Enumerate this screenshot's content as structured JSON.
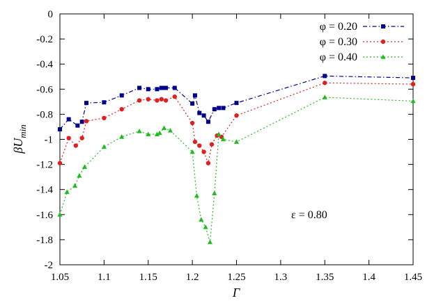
{
  "chart_data": {
    "type": "line",
    "title": "",
    "xlabel": "Γ",
    "ylabel_main": "βU",
    "ylabel_sub": "min",
    "xlim": [
      1.05,
      1.45
    ],
    "ylim": [
      -2,
      0
    ],
    "x_ticks": [
      "1.05",
      "1.1",
      "1.15",
      "1.2",
      "1.25",
      "1.3",
      "1.35",
      "1.4",
      "1.45"
    ],
    "y_ticks": [
      "0",
      "-0.2",
      "-0.4",
      "-0.6",
      "-0.8",
      "-1",
      "-1.2",
      "-1.4",
      "-1.6",
      "-1.8",
      "-2"
    ],
    "grid": false,
    "legend_position": "top-right",
    "annotation": "ε = 0.80",
    "series": [
      {
        "name": "φ = 0.20",
        "color": "#00008b",
        "marker": "square",
        "dash": "dash-dot",
        "x": [
          1.05,
          1.06,
          1.07,
          1.075,
          1.08,
          1.1,
          1.12,
          1.14,
          1.15,
          1.16,
          1.165,
          1.168,
          1.17,
          1.18,
          1.2,
          1.203,
          1.208,
          1.213,
          1.218,
          1.225,
          1.23,
          1.235,
          1.25,
          1.35,
          1.45
        ],
        "y": [
          -0.92,
          -0.84,
          -0.89,
          -0.86,
          -0.71,
          -0.705,
          -0.65,
          -0.59,
          -0.6,
          -0.6,
          -0.59,
          -0.59,
          -0.59,
          -0.59,
          -0.715,
          -0.65,
          -0.79,
          -0.81,
          -0.86,
          -0.76,
          -0.75,
          -0.75,
          -0.71,
          -0.495,
          -0.51
        ]
      },
      {
        "name": "φ = 0.30",
        "color": "#e02020",
        "marker": "circle",
        "dash": "dotted",
        "x": [
          1.05,
          1.06,
          1.068,
          1.075,
          1.08,
          1.1,
          1.12,
          1.14,
          1.15,
          1.16,
          1.165,
          1.17,
          1.18,
          1.2,
          1.203,
          1.208,
          1.213,
          1.218,
          1.222,
          1.228,
          1.233,
          1.25,
          1.35,
          1.45
        ],
        "y": [
          -1.19,
          -0.99,
          -1.05,
          -0.99,
          -0.855,
          -0.83,
          -0.76,
          -0.69,
          -0.68,
          -0.69,
          -0.68,
          -0.69,
          -0.66,
          -0.87,
          -1.02,
          -1.05,
          -1.1,
          -1.19,
          -1.04,
          -0.97,
          -0.98,
          -0.81,
          -0.55,
          -0.56
        ]
      },
      {
        "name": "φ = 0.40",
        "color": "#22bb22",
        "marker": "triangle",
        "dash": "dotted",
        "x": [
          1.05,
          1.058,
          1.067,
          1.072,
          1.078,
          1.1,
          1.12,
          1.14,
          1.15,
          1.16,
          1.163,
          1.168,
          1.175,
          1.2,
          1.205,
          1.21,
          1.215,
          1.22,
          1.225,
          1.23,
          1.235,
          1.25,
          1.35,
          1.45
        ],
        "y": [
          -1.6,
          -1.42,
          -1.37,
          -1.29,
          -1.22,
          -1.06,
          -0.98,
          -0.935,
          -0.96,
          -0.96,
          -0.95,
          -0.91,
          -0.93,
          -1.1,
          -1.45,
          -1.64,
          -1.7,
          -1.82,
          -1.43,
          -0.96,
          -1.0,
          -1.02,
          -0.665,
          -0.695
        ]
      }
    ]
  }
}
